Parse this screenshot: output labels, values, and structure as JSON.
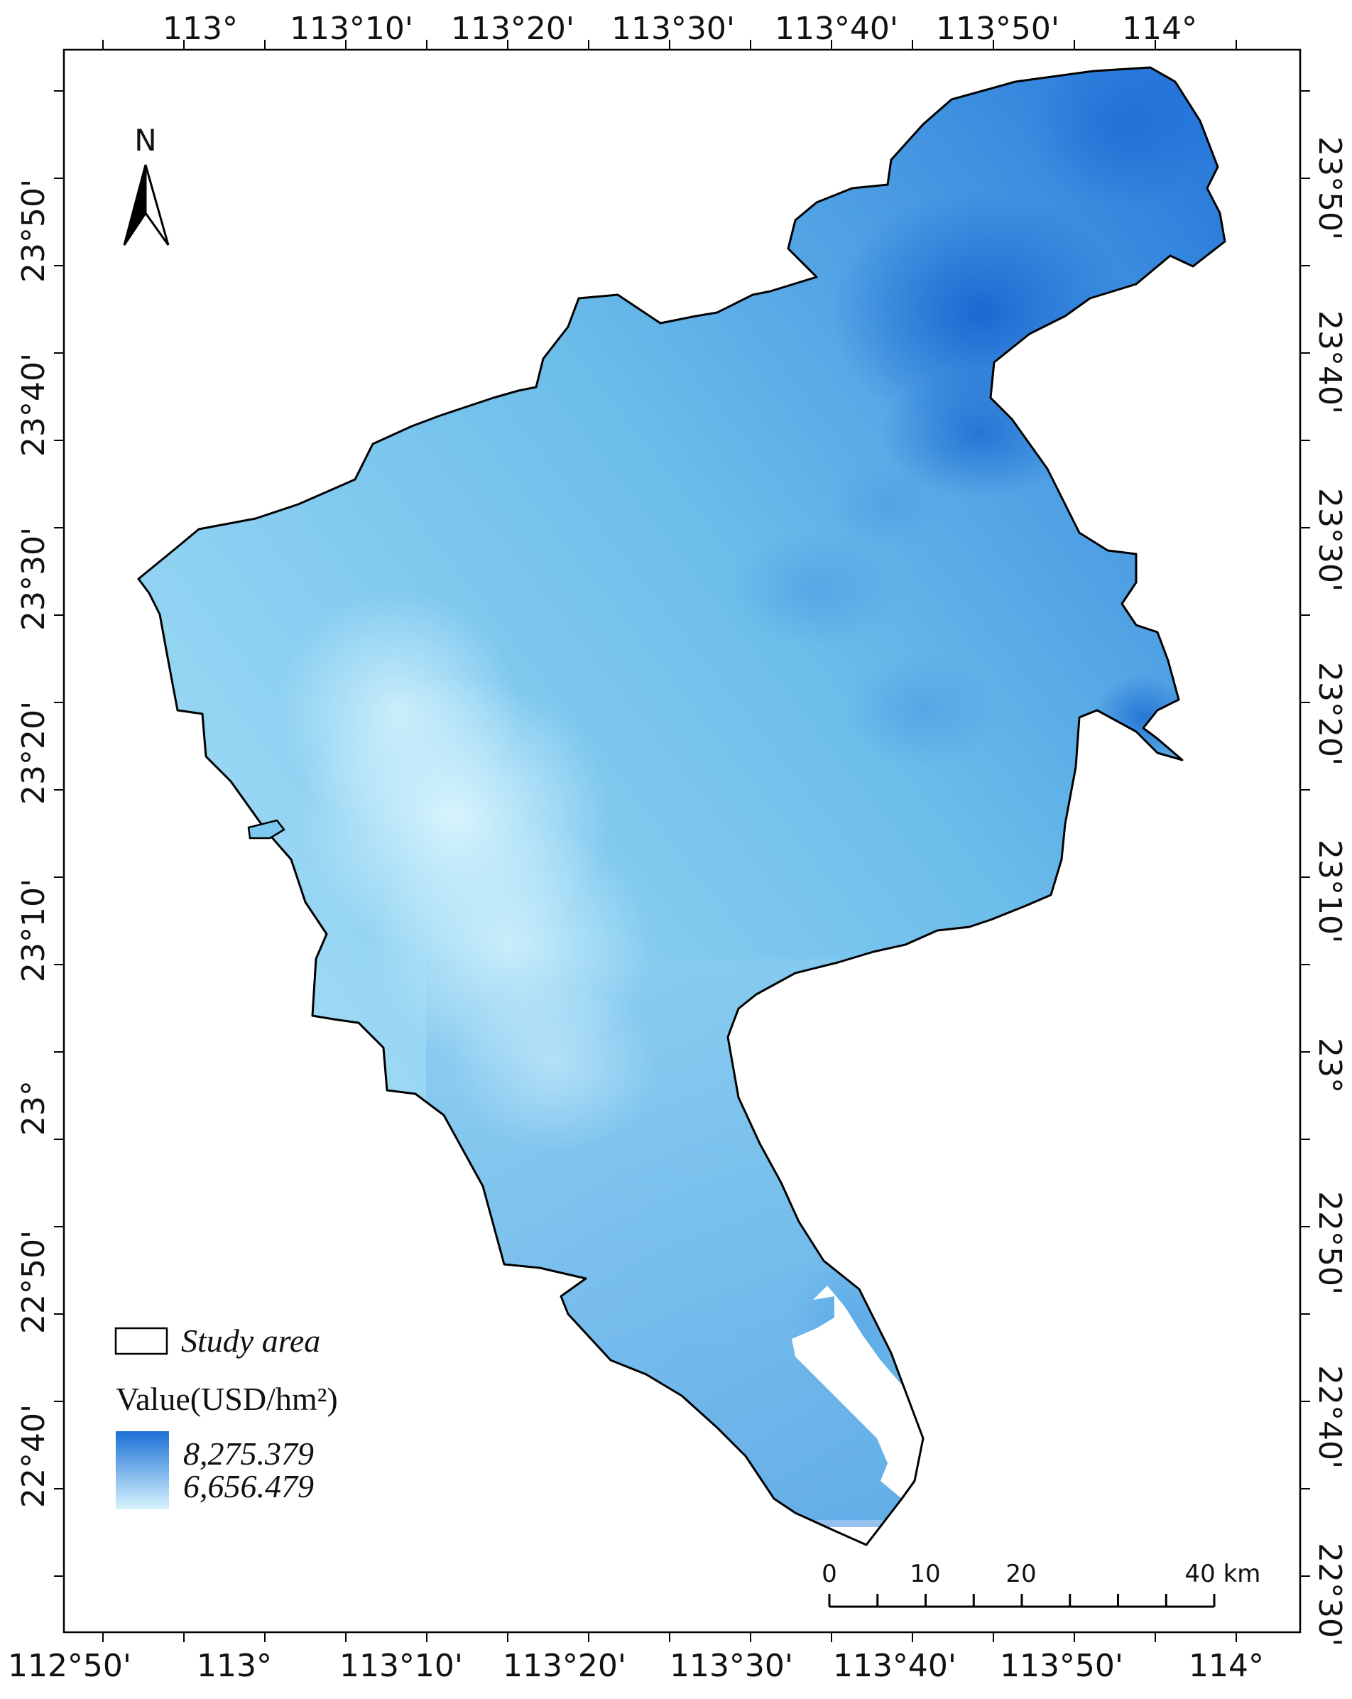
{
  "map": {
    "frame": {
      "top_longitude_labels": [
        "113°",
        "113°10'",
        "113°20'",
        "113°30'",
        "113°40'",
        "113°50'",
        "114°"
      ],
      "bottom_longitude_labels": [
        "112°50'",
        "113°",
        "113°10'",
        "113°20'",
        "113°30'",
        "113°40'",
        "113°50'",
        "114°"
      ],
      "left_latitude_labels": [
        "23°50'",
        "23°40'",
        "23°30'",
        "23°20'",
        "23°10'",
        "23°",
        "22°50'",
        "22°40'"
      ],
      "right_latitude_labels": [
        "23°50'",
        "23°40'",
        "23°30'",
        "23°20'",
        "23°10'",
        "23°",
        "22°50'",
        "22°40'",
        "22°30'"
      ]
    },
    "north_arrow": {
      "label": "N",
      "icon": "north-arrow-icon"
    },
    "legend": {
      "study_area_label": "Study area",
      "value_title": "Value(USD/hm²)",
      "max_label": "8,275.379",
      "min_label": "6,656.479",
      "max_color": "#1a6fd6",
      "min_color": "#d8f4fd"
    },
    "scale_bar": {
      "labels": [
        "0",
        "10",
        "20",
        "40 km"
      ]
    },
    "colors": {
      "light_region": "#c7ecfa",
      "mid_region": "#72c4ec",
      "dark_region": "#2f85dd",
      "boundary": "#000000",
      "frame": "#000000"
    }
  }
}
